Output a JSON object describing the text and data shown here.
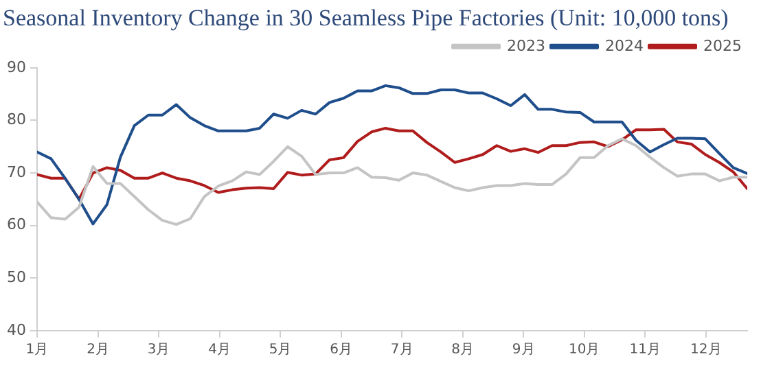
{
  "chart_data": {
    "type": "line",
    "title": "Seasonal Inventory Change in 30 Seamless Pipe Factories (Unit: 10,000 tons)",
    "x": [
      1,
      1.23,
      1.46,
      1.69,
      1.92,
      2.15,
      2.37,
      2.6,
      2.83,
      3.06,
      3.29,
      3.52,
      3.75,
      3.98,
      4.21,
      4.44,
      4.66,
      4.89,
      5.12,
      5.35,
      5.58,
      5.81,
      6.04,
      6.27,
      6.5,
      6.73,
      6.95,
      7.18,
      7.41,
      7.64,
      7.87,
      8.1,
      8.33,
      8.56,
      8.79,
      9.02,
      9.24,
      9.47,
      9.7,
      9.93,
      10.16,
      10.39,
      10.62,
      10.85,
      11.08,
      11.31,
      11.53,
      11.76,
      11.99,
      12.22,
      12.45,
      12.68
    ],
    "series": [
      {
        "name": "2023",
        "color": "#c4c4c4",
        "values": [
          64.5,
          61.5,
          61.2,
          63.5,
          71.2,
          68,
          68,
          65.5,
          63,
          61,
          60.2,
          61.3,
          65.5,
          67.5,
          68.5,
          70.2,
          69.7,
          72.2,
          75,
          73.2,
          69.7,
          70,
          70,
          71,
          69.2,
          69.1,
          68.6,
          70,
          69.6,
          68.4,
          67.2,
          66.6,
          67.2,
          67.6,
          67.6,
          68,
          67.8,
          67.8,
          69.8,
          72.9,
          72.9,
          75.2,
          76.5,
          75.2,
          73,
          71,
          69.4,
          69.8,
          69.8,
          68.5,
          69.2,
          69.2
        ]
      },
      {
        "name": "2024",
        "color": "#1f4e8c",
        "values": [
          74,
          72.7,
          69,
          65,
          60.3,
          64,
          73,
          79,
          81,
          81,
          83,
          80.5,
          79,
          78,
          78,
          78,
          78.5,
          81.2,
          80.4,
          81.9,
          81.2,
          83.4,
          84.2,
          85.6,
          85.6,
          86.6,
          86.2,
          85.1,
          85.1,
          85.8,
          85.8,
          85.2,
          85.2,
          84.1,
          82.8,
          84.9,
          82.1,
          82.1,
          81.6,
          81.5,
          79.7,
          79.7,
          79.7,
          76.2,
          74,
          75.4,
          76.6,
          76.6,
          76.5,
          73.7,
          71,
          69.9
        ]
      },
      {
        "name": "2025",
        "color": "#b01c1c",
        "values": [
          69.7,
          69,
          69,
          65,
          70,
          71,
          70.5,
          69,
          69,
          70,
          69,
          68.5,
          67.6,
          66.3,
          66.8,
          67.1,
          67.2,
          67,
          70.1,
          69.6,
          69.8,
          72.5,
          72.9,
          76,
          77.8,
          78.5,
          78,
          78,
          75.8,
          74,
          72,
          72.7,
          73.5,
          75.2,
          74.1,
          74.6,
          73.9,
          75.2,
          75.2,
          75.8,
          75.9,
          75,
          76.3,
          78.2,
          78.2,
          78.3,
          75.9,
          75.5,
          73.5,
          72,
          70.2,
          67
        ]
      }
    ],
    "xlim": [
      1,
      12.68
    ],
    "xticks": [
      {
        "value": 1,
        "label": "1月"
      },
      {
        "value": 2,
        "label": "2月"
      },
      {
        "value": 3,
        "label": "3月"
      },
      {
        "value": 4,
        "label": "4月"
      },
      {
        "value": 5,
        "label": "5月"
      },
      {
        "value": 6,
        "label": "6月"
      },
      {
        "value": 7,
        "label": "7月"
      },
      {
        "value": 8,
        "label": "8月"
      },
      {
        "value": 9,
        "label": "9月"
      },
      {
        "value": 10,
        "label": "10月"
      },
      {
        "value": 11,
        "label": "11月"
      },
      {
        "value": 12,
        "label": "12月"
      }
    ],
    "ylim": [
      40,
      90
    ],
    "yticks": [
      40,
      50,
      60,
      70,
      80,
      90
    ],
    "grid": false,
    "legend": "top right",
    "marker": "none",
    "line_style": "solid"
  }
}
